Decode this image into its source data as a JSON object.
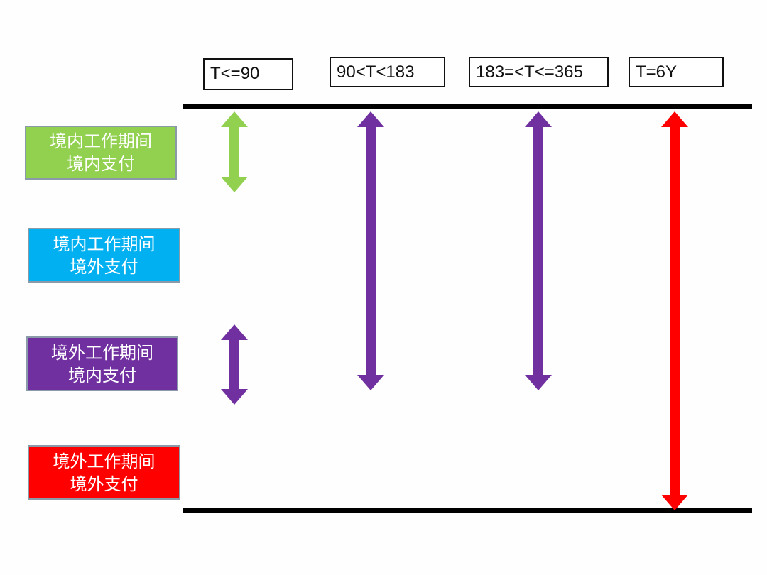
{
  "headers": [
    "T<=90",
    "90<T<183",
    "183=<T<=365",
    "T=6Y"
  ],
  "categories": [
    {
      "line1": "境内工作期间",
      "line2": "境内支付",
      "color": "#92d050"
    },
    {
      "line1": "境内工作期间",
      "line2": "境外支付",
      "color": "#00b0f0"
    },
    {
      "line1": "境外工作期间",
      "line2": "境内支付",
      "color": "#7030a0"
    },
    {
      "line1": "境外工作期间",
      "line2": "境外支付",
      "color": "#ff0000"
    }
  ],
  "arrows": [
    {
      "column": "T<=90",
      "category": "境内工作期间 境内支付",
      "color": "#92d050"
    },
    {
      "column": "T<=90",
      "category": "境外工作期间 境内支付",
      "color": "#7030a0"
    },
    {
      "column": "90<T<183",
      "color": "#7030a0"
    },
    {
      "column": "183=<T<=365",
      "color": "#7030a0"
    },
    {
      "column": "T=6Y",
      "color": "#ff0000"
    }
  ]
}
